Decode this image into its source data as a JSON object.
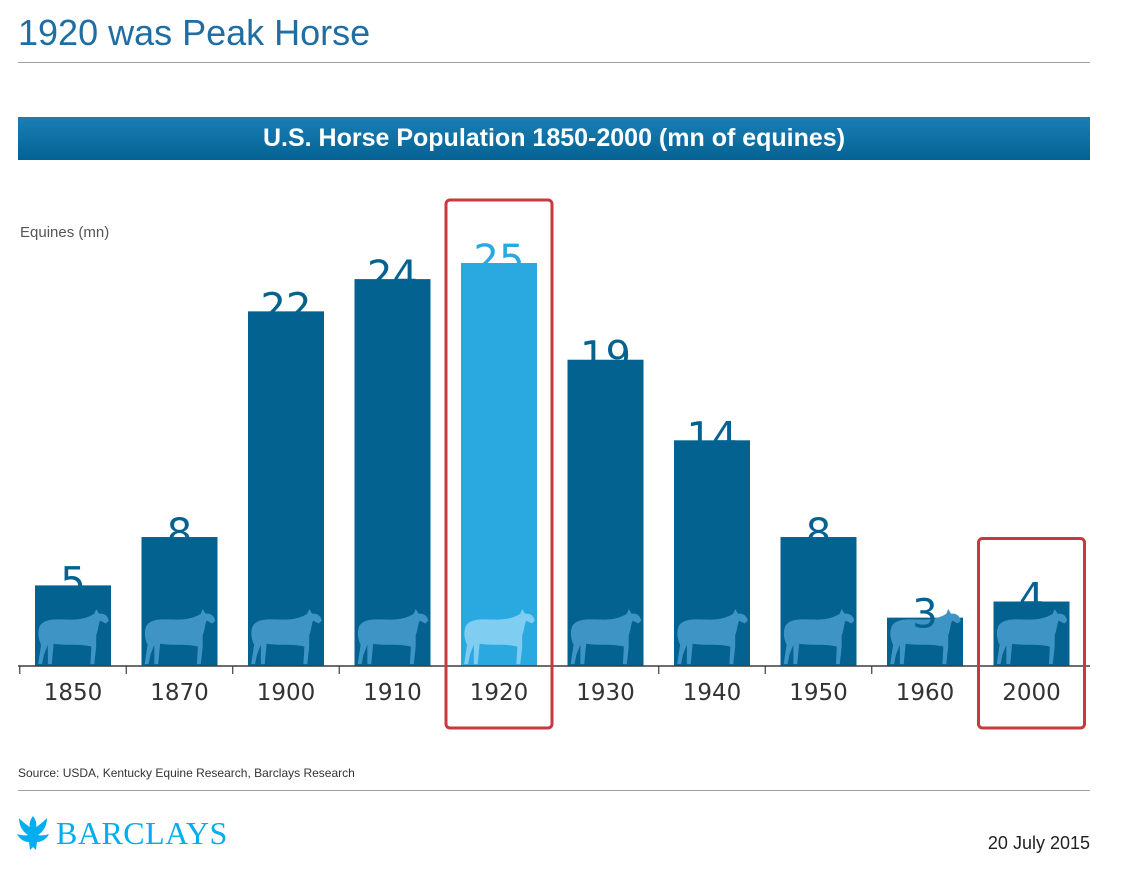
{
  "page": {
    "title": "1920 was Peak Horse",
    "source": "Source: USDA, Kentucky Equine Research, Barclays Research",
    "logo_text": "BARCLAYS",
    "date": "20 July 2015"
  },
  "chart_data": {
    "type": "bar",
    "title": "U.S. Horse Population 1850-2000 (mn of equines)",
    "ylabel": "Equines (mn)",
    "xlabel": "",
    "categories": [
      "1850",
      "1870",
      "1900",
      "1910",
      "1920",
      "1930",
      "1940",
      "1950",
      "1960",
      "2000"
    ],
    "values": [
      5,
      8,
      22,
      24,
      25,
      19,
      14,
      8,
      3,
      4
    ],
    "ylim": [
      0,
      25
    ],
    "grid": false,
    "legend": "none",
    "highlighted": [
      "1920",
      "2000"
    ],
    "colors": {
      "bar": "#03628f",
      "bar_peak": "#2aa9e0",
      "highlight_box": "#c8383f",
      "value_label": "#03628f",
      "value_label_peak": "#2aa9e0",
      "banner": "#0a6c9f",
      "title": "#1f6ea3",
      "logo": "#00aeef"
    },
    "icons": [
      "horse-silhouette-icon"
    ]
  }
}
